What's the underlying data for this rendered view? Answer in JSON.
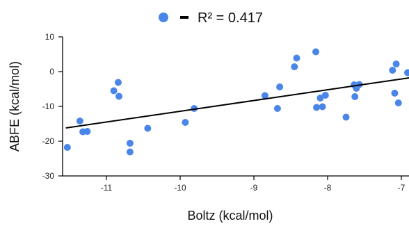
{
  "chart_data": {
    "type": "scatter",
    "xlabel": "Boltz (kcal/mol)",
    "ylabel": "ABFE (kcal/mol)",
    "xlim": [
      -11.55,
      -7.0
    ],
    "ylim": [
      -30,
      10
    ],
    "x_ticks": [
      -11,
      -10,
      -9,
      -8,
      -7
    ],
    "y_ticks": [
      10,
      0,
      -10,
      -20,
      -30
    ],
    "grid": false,
    "legend_position": "top-center",
    "legend": {
      "marker_color": "#4a86e8",
      "line_color": "#000000",
      "label": "R² = 0.417"
    },
    "point_color": "#4a86e8",
    "fit_line_color": "#000000",
    "points": [
      {
        "x": -11.53,
        "y": -21.8
      },
      {
        "x": -11.36,
        "y": -14.2
      },
      {
        "x": -11.32,
        "y": -17.3
      },
      {
        "x": -11.26,
        "y": -17.2
      },
      {
        "x": -10.9,
        "y": -5.5
      },
      {
        "x": -10.84,
        "y": -3.1
      },
      {
        "x": -10.83,
        "y": -7.1
      },
      {
        "x": -10.68,
        "y": -20.6
      },
      {
        "x": -10.68,
        "y": -23.1
      },
      {
        "x": -10.44,
        "y": -16.3
      },
      {
        "x": -9.93,
        "y": -14.6
      },
      {
        "x": -9.81,
        "y": -10.6
      },
      {
        "x": -8.85,
        "y": -6.9
      },
      {
        "x": -8.68,
        "y": -10.6
      },
      {
        "x": -8.65,
        "y": -4.4
      },
      {
        "x": -8.45,
        "y": 1.4
      },
      {
        "x": -8.42,
        "y": 3.9
      },
      {
        "x": -8.16,
        "y": 5.7
      },
      {
        "x": -8.15,
        "y": -10.3
      },
      {
        "x": -8.1,
        "y": -7.6
      },
      {
        "x": -8.07,
        "y": -10.1
      },
      {
        "x": -8.03,
        "y": -6.8
      },
      {
        "x": -7.75,
        "y": -13.1
      },
      {
        "x": -7.64,
        "y": -3.8
      },
      {
        "x": -7.63,
        "y": -7.2
      },
      {
        "x": -7.61,
        "y": -4.8
      },
      {
        "x": -7.57,
        "y": -3.7
      },
      {
        "x": -7.12,
        "y": 0.4
      },
      {
        "x": -7.09,
        "y": -6.2
      },
      {
        "x": -7.07,
        "y": 2.2
      },
      {
        "x": -7.04,
        "y": -9.0
      },
      {
        "x": -6.88,
        "y": -0.3
      }
    ],
    "fit_line": {
      "x": [
        -11.55,
        -6.88
      ],
      "y": [
        -16.2,
        -1.8
      ]
    }
  }
}
